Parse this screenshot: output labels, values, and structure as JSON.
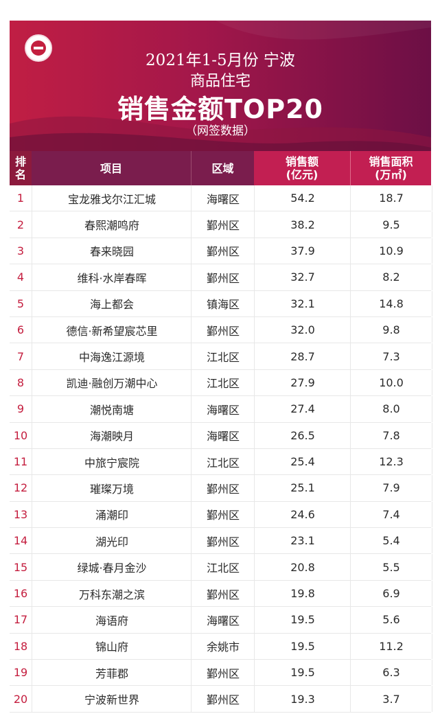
{
  "header": {
    "line1": "2021年1-5月份  宁波",
    "line2": "商品住宅",
    "line3": "销售金额TOP20",
    "line4": "（网签数据）"
  },
  "columns": {
    "rank": "排\n名",
    "project": "项目",
    "district": "区域",
    "sales": "销售额\n(亿元)",
    "area": "销售面积\n(万㎡)"
  },
  "colors": {
    "banner_start": "#c01e44",
    "banner_end": "#6c0f45",
    "header_bg": "#7a1d4d",
    "accent": "#c21f52",
    "rank_text": "#c41d3e"
  },
  "rows": [
    {
      "rank": "1",
      "project": "宝龙雅戈尔江汇城",
      "district": "海曙区",
      "sales": "54.2",
      "area": "18.7"
    },
    {
      "rank": "2",
      "project": "春熙潮鸣府",
      "district": "鄞州区",
      "sales": "38.2",
      "area": "9.5"
    },
    {
      "rank": "3",
      "project": "春来晓园",
      "district": "鄞州区",
      "sales": "37.9",
      "area": "10.9"
    },
    {
      "rank": "4",
      "project": "维科·水岸春晖",
      "district": "鄞州区",
      "sales": "32.7",
      "area": "8.2"
    },
    {
      "rank": "5",
      "project": "海上都会",
      "district": "镇海区",
      "sales": "32.1",
      "area": "14.8"
    },
    {
      "rank": "6",
      "project": "德信·新希望宸芯里",
      "district": "鄞州区",
      "sales": "32.0",
      "area": "9.8"
    },
    {
      "rank": "7",
      "project": "中海逸江源境",
      "district": "江北区",
      "sales": "28.7",
      "area": "7.3"
    },
    {
      "rank": "8",
      "project": "凯迪·融创万潮中心",
      "district": "江北区",
      "sales": "27.9",
      "area": "10.0"
    },
    {
      "rank": "9",
      "project": "潮悦南塘",
      "district": "海曙区",
      "sales": "27.4",
      "area": "8.0"
    },
    {
      "rank": "10",
      "project": "海潮映月",
      "district": "海曙区",
      "sales": "26.5",
      "area": "7.8"
    },
    {
      "rank": "11",
      "project": "中旅宁宸院",
      "district": "江北区",
      "sales": "25.4",
      "area": "12.3"
    },
    {
      "rank": "12",
      "project": "璀璨万境",
      "district": "鄞州区",
      "sales": "25.1",
      "area": "7.9"
    },
    {
      "rank": "13",
      "project": "涌潮印",
      "district": "鄞州区",
      "sales": "24.6",
      "area": "7.4"
    },
    {
      "rank": "14",
      "project": "湖光印",
      "district": "鄞州区",
      "sales": "23.1",
      "area": "5.4"
    },
    {
      "rank": "15",
      "project": "绿城·春月金沙",
      "district": "江北区",
      "sales": "20.8",
      "area": "5.5"
    },
    {
      "rank": "16",
      "project": "万科东潮之滨",
      "district": "鄞州区",
      "sales": "19.8",
      "area": "6.9"
    },
    {
      "rank": "17",
      "project": "海语府",
      "district": "海曙区",
      "sales": "19.5",
      "area": "5.6"
    },
    {
      "rank": "18",
      "project": "锦山府",
      "district": "余姚市",
      "sales": "19.5",
      "area": "11.2"
    },
    {
      "rank": "19",
      "project": "芳菲郡",
      "district": "鄞州区",
      "sales": "19.5",
      "area": "6.3"
    },
    {
      "rank": "20",
      "project": "宁波新世界",
      "district": "鄞州区",
      "sales": "19.3",
      "area": "3.7"
    }
  ]
}
